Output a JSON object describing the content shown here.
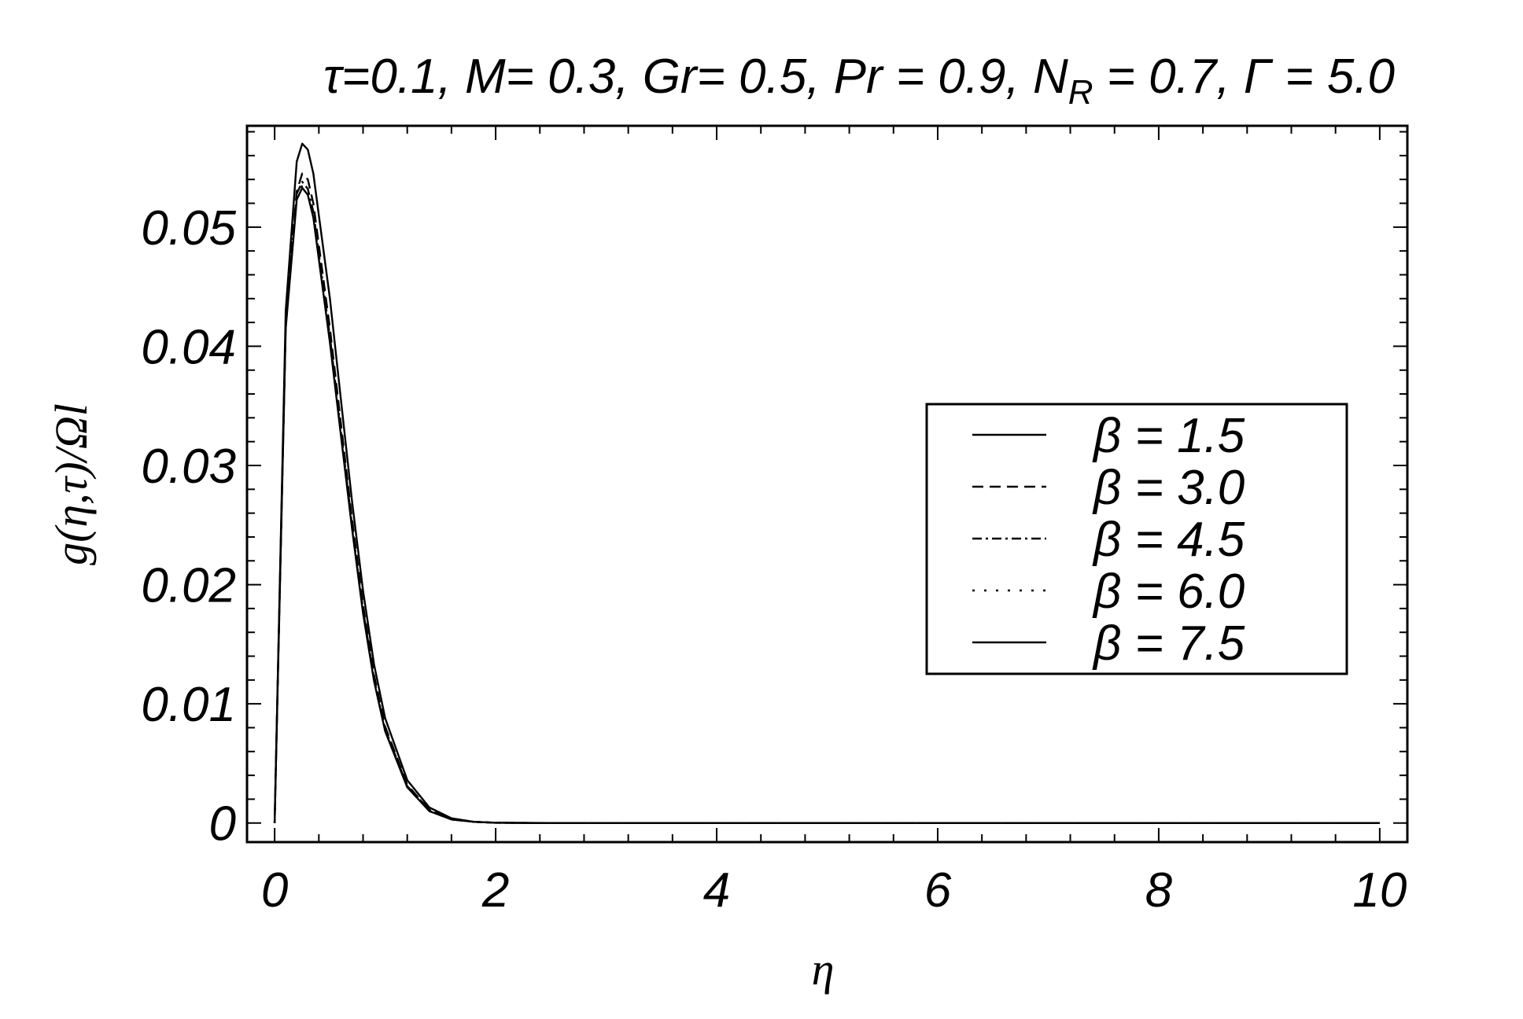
{
  "chart_data": {
    "type": "line",
    "title": "τ=0.1, M= 0.3, Gr= 0.5, Pr = 0.9, N_R = 0.7, Γ = 5.0",
    "title_parts": {
      "before_sub": "τ=0.1, M= 0.3, Gr= 0.5, Pr = 0.9, N",
      "sub": "R",
      "after_sub": " = 0.7, Γ = 5.0"
    },
    "xlabel": "η",
    "ylabel": "g(η,τ)/Ωl",
    "xlim": [
      -0.25,
      10.25
    ],
    "ylim": [
      -0.0016,
      0.0585
    ],
    "xticks": [
      0,
      2,
      4,
      6,
      8,
      10
    ],
    "xtick_labels": [
      "0",
      "2",
      "4",
      "6",
      "8",
      "10"
    ],
    "yticks": [
      0,
      0.01,
      0.02,
      0.03,
      0.04,
      0.05
    ],
    "ytick_labels": [
      "0",
      "0.01",
      "0.02",
      "0.03",
      "0.04",
      "0.05"
    ],
    "grid": false,
    "legend_position": "center-right",
    "x": [
      0,
      0.1,
      0.2,
      0.25,
      0.3,
      0.35,
      0.4,
      0.5,
      0.6,
      0.7,
      0.8,
      0.9,
      1.0,
      1.2,
      1.4,
      1.6,
      1.8,
      2.0,
      2.2,
      2.5,
      3,
      4,
      5,
      6,
      7,
      8,
      9,
      10
    ],
    "series": [
      {
        "name": "β = 1.5",
        "dash": "solid",
        "values": [
          0,
          0.043,
          0.0555,
          0.057,
          0.0565,
          0.0545,
          0.051,
          0.044,
          0.0355,
          0.027,
          0.0195,
          0.0133,
          0.0088,
          0.0036,
          0.0013,
          0.0004,
          0.0001,
          3e-05,
          1e-05,
          0,
          0,
          0,
          0,
          0,
          0,
          0,
          0,
          0
        ]
      },
      {
        "name": "β = 3.0",
        "dash": "dashed",
        "values": [
          0,
          0.042,
          0.053,
          0.0545,
          0.054,
          0.052,
          0.0485,
          0.0415,
          0.0335,
          0.0255,
          0.0183,
          0.0124,
          0.0081,
          0.0032,
          0.0011,
          0.0003,
          0.0001,
          2e-05,
          1e-05,
          0,
          0,
          0,
          0,
          0,
          0,
          0,
          0,
          0
        ]
      },
      {
        "name": "β = 4.5",
        "dash": "dashdot",
        "values": [
          0,
          0.0418,
          0.0528,
          0.0538,
          0.0532,
          0.0513,
          0.0478,
          0.0408,
          0.0329,
          0.025,
          0.0179,
          0.0121,
          0.0079,
          0.0031,
          0.0011,
          0.0003,
          0.0001,
          2e-05,
          1e-05,
          0,
          0,
          0,
          0,
          0,
          0,
          0,
          0,
          0
        ]
      },
      {
        "name": "β = 6.0",
        "dash": "dotted",
        "values": [
          0,
          0.0416,
          0.0525,
          0.0535,
          0.0529,
          0.051,
          0.0475,
          0.0405,
          0.0326,
          0.0248,
          0.0177,
          0.012,
          0.0078,
          0.003,
          0.001,
          0.0003,
          0.0001,
          2e-05,
          1e-05,
          0,
          0,
          0,
          0,
          0,
          0,
          0,
          0,
          0
        ]
      },
      {
        "name": "β = 7.5",
        "dash": "solid",
        "values": [
          0,
          0.0415,
          0.0523,
          0.0533,
          0.0527,
          0.0508,
          0.0473,
          0.0403,
          0.0325,
          0.0247,
          0.0176,
          0.0119,
          0.0077,
          0.003,
          0.001,
          0.0003,
          0.0001,
          2e-05,
          1e-05,
          0,
          0,
          0,
          0,
          0,
          0,
          0,
          0,
          0
        ]
      }
    ],
    "colors": {
      "line": "#000000",
      "frame": "#000000",
      "background": "#ffffff"
    }
  }
}
